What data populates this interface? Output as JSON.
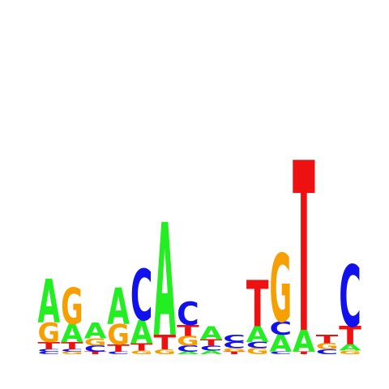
{
  "colors": {
    "A": "#22ee22",
    "C": "#1111ee",
    "G": "#f5a000",
    "T": "#ee1111"
  },
  "positions": [
    [
      [
        "C",
        0.04
      ],
      [
        "C",
        0.04
      ],
      [
        "T",
        0.12
      ],
      [
        "G",
        0.32
      ],
      [
        "A",
        0.72
      ]
    ],
    [
      [
        "G",
        0.04
      ],
      [
        "C",
        0.04
      ],
      [
        "T",
        0.12
      ],
      [
        "A",
        0.3
      ],
      [
        "G",
        0.6
      ]
    ],
    [
      [
        "T",
        0.04
      ],
      [
        "C",
        0.1
      ],
      [
        "G",
        0.12
      ],
      [
        "A",
        0.26
      ]
    ],
    [
      [
        "C",
        0.04
      ],
      [
        "T",
        0.12
      ],
      [
        "G",
        0.34
      ],
      [
        "A",
        0.6
      ]
    ],
    [
      [
        "G",
        0.06
      ],
      [
        "T",
        0.12
      ],
      [
        "A",
        0.38
      ],
      [
        "C",
        0.84
      ]
    ],
    [
      [
        "G",
        0.08
      ],
      [
        "T",
        0.24
      ],
      [
        "A",
        1.86
      ]
    ],
    [
      [
        "A",
        0.04
      ],
      [
        "C",
        0.1
      ],
      [
        "G",
        0.16
      ],
      [
        "T",
        0.18
      ],
      [
        "C",
        0.38
      ]
    ],
    [
      [
        "A",
        0.06
      ],
      [
        "C",
        0.08
      ],
      [
        "T",
        0.1
      ],
      [
        "A",
        0.22
      ]
    ],
    [
      [
        "T",
        0.04
      ],
      [
        "G",
        0.06
      ],
      [
        "C",
        0.1
      ],
      [
        "C",
        0.12
      ]
    ],
    [
      [
        "G",
        0.1
      ],
      [
        "C",
        0.1
      ],
      [
        "A",
        0.26
      ],
      [
        "T",
        0.76
      ]
    ],
    [
      [
        "C",
        0.04
      ],
      [
        "A",
        0.28
      ],
      [
        "C",
        0.22
      ],
      [
        "G",
        1.12
      ]
    ],
    [
      [
        "T",
        0.04
      ],
      [
        "A",
        0.36
      ],
      [
        "T",
        2.8
      ]
    ],
    [
      [
        "C",
        0.08
      ],
      [
        "G",
        0.1
      ],
      [
        "T",
        0.14
      ]
    ],
    [
      [
        "G",
        0.06
      ],
      [
        "A",
        0.1
      ],
      [
        "T",
        0.3
      ],
      [
        "C",
        1.02
      ]
    ]
  ]
}
